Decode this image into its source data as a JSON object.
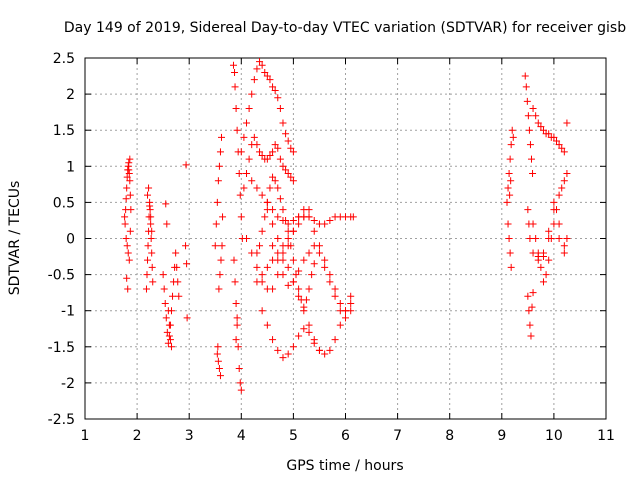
{
  "chart_data": {
    "type": "scatter",
    "title": "Day 149 of 2019, Sidereal Day-to-day VTEC variation (SDTVAR) for receiver gisb",
    "xlabel": "GPS time / hours",
    "ylabel": "SDTVAR / TECUs",
    "xlim": [
      1,
      11
    ],
    "ylim": [
      -2.5,
      2.5
    ],
    "xticks": [
      "1",
      "2",
      "3",
      "4",
      "5",
      "6",
      "7",
      "8",
      "9",
      "10",
      "11"
    ],
    "yticks": [
      "-2.5",
      "-2",
      "-1.5",
      "-1",
      "-0.5",
      "0",
      "0.5",
      "1",
      "1.5",
      "2",
      "2.5"
    ],
    "grid": true,
    "marker": "plus",
    "color": "#ff0000",
    "series": [
      {
        "name": "SDTVAR",
        "x": [
          1.76,
          1.78,
          1.79,
          1.8,
          1.81,
          1.82,
          1.83,
          1.84,
          1.85,
          1.86,
          1.87,
          1.88,
          1.77,
          1.79,
          1.81,
          1.83,
          1.85,
          1.87,
          1.8,
          1.82,
          1.84,
          1.86,
          2.18,
          2.19,
          2.2,
          2.21,
          2.22,
          2.23,
          2.24,
          2.25,
          2.26,
          2.27,
          2.28,
          2.29,
          2.3,
          2.2,
          2.22,
          2.24,
          2.26,
          2.28,
          2.5,
          2.52,
          2.54,
          2.56,
          2.58,
          2.6,
          2.62,
          2.64,
          2.66,
          2.68,
          2.7,
          2.72,
          2.74,
          2.76,
          2.78,
          2.8,
          2.6,
          2.62,
          2.64,
          2.66,
          2.55,
          2.57,
          2.93,
          2.94,
          2.95,
          2.96,
          3.5,
          3.52,
          3.54,
          3.56,
          3.58,
          3.6,
          3.62,
          3.64,
          3.54,
          3.56,
          3.58,
          3.6,
          3.55,
          3.57,
          3.59,
          3.61,
          3.63,
          3.85,
          3.87,
          3.88,
          3.9,
          3.92,
          3.94,
          3.96,
          3.98,
          4.0,
          4.02,
          3.86,
          3.88,
          3.9,
          3.92,
          3.94,
          3.96,
          3.98,
          4.0,
          3.9,
          3.92,
          4.0,
          4.05,
          4.1,
          4.15,
          4.2,
          4.25,
          4.3,
          4.35,
          4.4,
          4.45,
          4.5,
          4.55,
          4.6,
          4.65,
          4.7,
          4.75,
          4.8,
          4.85,
          4.9,
          4.95,
          5.0,
          4.05,
          4.1,
          4.15,
          4.2,
          4.25,
          4.3,
          4.35,
          4.4,
          4.45,
          4.5,
          4.55,
          4.6,
          4.65,
          4.7,
          4.75,
          4.8,
          4.85,
          4.9,
          4.95,
          5.0,
          4.1,
          4.2,
          4.3,
          4.4,
          4.5,
          4.6,
          4.7,
          4.8,
          4.9,
          5.0,
          5.1,
          5.2,
          5.3,
          5.4,
          5.5,
          5.6,
          5.7,
          5.8,
          5.9,
          6.0,
          6.1,
          6.15,
          4.1,
          4.2,
          4.3,
          4.4,
          4.5,
          4.6,
          4.7,
          4.8,
          4.9,
          5.0,
          5.1,
          5.2,
          5.3,
          5.4,
          5.5,
          5.6,
          5.7,
          5.8,
          5.9,
          6.0,
          6.1,
          4.5,
          4.6,
          4.7,
          4.8,
          4.9,
          5.0,
          5.1,
          5.2,
          5.3,
          5.4,
          5.5,
          5.6,
          5.7,
          5.8,
          5.9,
          6.0,
          6.1,
          4.4,
          4.5,
          4.6,
          4.7,
          4.8,
          4.9,
          5.0,
          5.1,
          5.2,
          5.3,
          5.4,
          5.5,
          4.3,
          4.4,
          4.5,
          4.6,
          4.7,
          4.8,
          4.9,
          5.0,
          5.1,
          5.2,
          5.3,
          4.6,
          4.7,
          4.8,
          4.9,
          5.0,
          5.1,
          5.2,
          5.3,
          5.4,
          5.5,
          5.6,
          5.7,
          5.8,
          5.9,
          6.0,
          6.1,
          4.3,
          4.35,
          4.4,
          4.45,
          4.5,
          4.55,
          4.6,
          4.65,
          4.7,
          4.75,
          4.8,
          4.85,
          4.9,
          4.95,
          5.0,
          5.05,
          5.1,
          5.15,
          5.2,
          5.25,
          5.3,
          5.35,
          5.4,
          9.1,
          9.12,
          9.14,
          9.16,
          9.18,
          9.2,
          9.22,
          9.12,
          9.14,
          9.16,
          9.18,
          9.15,
          9.17,
          9.45,
          9.47,
          9.49,
          9.51,
          9.53,
          9.55,
          9.57,
          9.59,
          9.5,
          9.52,
          9.54,
          9.56,
          9.58,
          9.6,
          9.5,
          9.52,
          9.54,
          9.6,
          9.7,
          9.8,
          9.9,
          10.0,
          10.1,
          10.2,
          9.65,
          9.75,
          9.85,
          9.95,
          10.05,
          10.15,
          10.25,
          9.6,
          9.7,
          9.8,
          9.9,
          10.0,
          10.1,
          10.2,
          9.65,
          9.75,
          9.85,
          9.95,
          10.05,
          10.15,
          10.25,
          9.6,
          9.7,
          9.8,
          9.9,
          10.0,
          10.1,
          10.2,
          9.7,
          9.8,
          9.9,
          10.0,
          10.1,
          10.2,
          10.25
        ],
        "y": [
          0.3,
          0.4,
          0.55,
          0.7,
          0.85,
          0.95,
          1.0,
          1.05,
          0.9,
          0.8,
          0.6,
          0.4,
          0.2,
          0.0,
          -0.1,
          -0.2,
          -0.3,
          0.1,
          -0.55,
          -0.7,
          0.95,
          1.1,
          -0.7,
          -0.5,
          -0.3,
          -0.1,
          0.1,
          0.3,
          0.45,
          0.4,
          0.2,
          0.0,
          -0.2,
          -0.4,
          -0.6,
          0.6,
          0.7,
          0.5,
          0.3,
          0.1,
          -0.5,
          -0.7,
          -0.9,
          -1.1,
          -1.3,
          -1.45,
          -1.35,
          -1.2,
          -1.0,
          -0.8,
          -0.6,
          -0.4,
          -0.2,
          -0.4,
          -0.6,
          -0.8,
          -1.0,
          -1.2,
          -1.4,
          -1.5,
          0.48,
          0.2,
          -0.1,
          1.02,
          -0.35,
          -1.1,
          -0.1,
          0.2,
          0.5,
          0.8,
          1.0,
          1.2,
          1.4,
          0.3,
          -1.6,
          -1.7,
          -1.8,
          -1.9,
          -1.5,
          -0.7,
          -0.5,
          -0.3,
          -0.1,
          2.4,
          2.3,
          2.1,
          1.8,
          1.5,
          1.2,
          0.9,
          0.6,
          0.3,
          0.0,
          -0.3,
          -0.6,
          -0.9,
          -1.2,
          -1.5,
          -1.8,
          -2.0,
          -2.1,
          -1.4,
          -1.1,
          1.2,
          1.4,
          1.6,
          1.8,
          2.0,
          2.2,
          2.35,
          2.45,
          2.4,
          2.3,
          2.25,
          2.2,
          2.1,
          2.05,
          1.95,
          1.8,
          1.6,
          1.45,
          1.35,
          1.25,
          1.2,
          0.7,
          0.9,
          1.1,
          1.3,
          1.4,
          1.3,
          1.2,
          1.15,
          1.1,
          1.1,
          1.15,
          1.2,
          1.3,
          1.25,
          1.1,
          1.0,
          0.95,
          0.9,
          0.85,
          0.8,
          0.9,
          0.8,
          0.7,
          0.6,
          0.5,
          0.4,
          0.3,
          0.25,
          0.2,
          0.25,
          0.3,
          0.3,
          0.3,
          0.25,
          0.2,
          0.2,
          0.25,
          0.3,
          0.3,
          0.3,
          0.3,
          0.3,
          0.0,
          -0.2,
          -0.4,
          -0.6,
          -0.7,
          -0.7,
          -0.5,
          -0.3,
          -0.1,
          0.1,
          0.3,
          0.4,
          0.3,
          0.1,
          -0.1,
          -0.3,
          -0.5,
          -0.7,
          -0.9,
          -1.0,
          -0.9,
          0.4,
          0.2,
          0.0,
          -0.2,
          -0.4,
          -0.6,
          -0.8,
          -1.0,
          -1.2,
          -1.4,
          -1.55,
          -1.6,
          -1.55,
          -1.4,
          -1.2,
          -1.0,
          -0.8,
          -1.0,
          -1.2,
          -1.4,
          -1.55,
          -1.65,
          -1.6,
          -1.5,
          -1.35,
          -1.25,
          -1.3,
          -1.45,
          -1.55,
          -0.6,
          -0.5,
          -0.4,
          -0.3,
          -0.2,
          -0.1,
          0.0,
          0.1,
          0.2,
          0.3,
          0.4,
          -0.1,
          -0.3,
          -0.5,
          -0.65,
          -0.6,
          -0.45,
          -0.3,
          -0.2,
          -0.1,
          -0.2,
          -0.4,
          -0.6,
          -0.8,
          -1.0,
          -1.1,
          -1.0,
          -0.2,
          -0.1,
          0.1,
          0.3,
          0.5,
          0.7,
          0.85,
          0.8,
          0.7,
          0.55,
          0.4,
          0.25,
          0.1,
          -0.1,
          -0.3,
          -0.5,
          -0.7,
          -0.85,
          -0.95,
          -0.85,
          -0.7,
          -0.5,
          -0.35,
          0.5,
          0.7,
          0.9,
          1.1,
          1.3,
          1.5,
          1.4,
          0.2,
          0.0,
          -0.2,
          -0.4,
          0.6,
          0.8,
          2.25,
          2.1,
          1.9,
          1.7,
          1.5,
          1.3,
          1.1,
          0.9,
          -0.8,
          -1.0,
          -1.2,
          -1.35,
          -0.95,
          -0.75,
          0.4,
          0.2,
          0.0,
          1.8,
          1.6,
          1.5,
          1.45,
          1.4,
          1.3,
          1.2,
          1.7,
          1.55,
          1.45,
          1.4,
          1.35,
          1.25,
          1.6,
          0.2,
          -0.2,
          -0.6,
          -0.3,
          0.2,
          0.6,
          0.8,
          0.0,
          -0.4,
          -0.5,
          0.0,
          0.4,
          0.7,
          0.9,
          -0.2,
          -0.3,
          -0.2,
          0.0,
          0.5,
          0.2,
          -0.1,
          -0.25,
          -0.25,
          0.1,
          0.4,
          0.0,
          -0.2,
          0.0
        ]
      }
    ]
  }
}
